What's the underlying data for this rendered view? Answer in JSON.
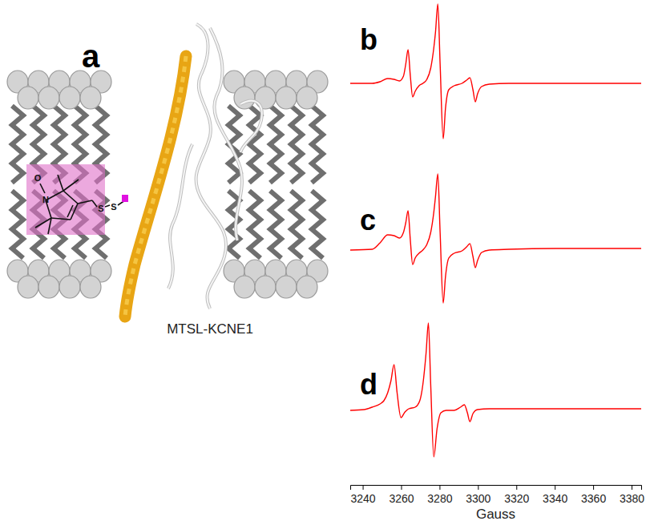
{
  "diagram": {
    "label": "a",
    "caption": "MTSL-KCNE1",
    "molecule": {
      "atoms": [
        "O",
        "N",
        "S",
        "S"
      ]
    }
  },
  "chart_data": [
    {
      "type": "line",
      "title": "b",
      "color": "#ff0000",
      "tick_labels": false,
      "xlim": [
        3233.5,
        3385
      ],
      "ylim": [
        -7.5,
        10.5
      ],
      "x": [
        3233.5,
        3244.9,
        3249.0,
        3253.0,
        3256.3,
        3259.1,
        3261.2,
        3262.4,
        3263.6,
        3264.8,
        3266.0,
        3267.3,
        3269.3,
        3271.3,
        3273.4,
        3275.4,
        3277.0,
        3277.9,
        3279.1,
        3280.3,
        3281.9,
        3283.1,
        3284.8,
        3287.6,
        3291.7,
        3294.1,
        3295.8,
        3297.4,
        3298.6,
        3299.8,
        3301.9,
        3305.9,
        3316.1,
        3340.5,
        3364.9,
        3385.3
      ],
      "values": [
        0.1,
        0.1,
        0.3,
        0.7,
        0.6,
        0.4,
        1.0,
        2.5,
        4.3,
        1.0,
        -1.6,
        -0.9,
        -0.2,
        0.1,
        0.6,
        2.0,
        4.5,
        6.5,
        10.0,
        2.5,
        -6.8,
        -3.0,
        -0.7,
        -0.2,
        0.1,
        0.5,
        0.8,
        -0.7,
        -2.2,
        -1.2,
        -0.3,
        0.0,
        0.1,
        0.1,
        0.1,
        0.1
      ]
    },
    {
      "type": "line",
      "title": "c",
      "color": "#ff0000",
      "tick_labels": false,
      "xlim": [
        3233.5,
        3385
      ],
      "ylim": [
        -8.3,
        10.7
      ],
      "x": [
        3233.5,
        3244.9,
        3249.0,
        3253.0,
        3256.3,
        3259.1,
        3261.2,
        3262.4,
        3263.6,
        3264.8,
        3266.0,
        3267.3,
        3269.3,
        3271.3,
        3273.4,
        3275.4,
        3277.0,
        3277.9,
        3279.1,
        3280.3,
        3281.9,
        3283.1,
        3284.8,
        3287.6,
        3291.7,
        3294.1,
        3295.8,
        3297.4,
        3298.6,
        3299.8,
        3301.9,
        3305.9,
        3316.1,
        3340.5,
        3364.9,
        3385.3
      ],
      "values": [
        0.0,
        0.1,
        0.9,
        1.9,
        1.8,
        1.5,
        2.2,
        3.4,
        4.9,
        1.2,
        -1.8,
        -1.0,
        -0.4,
        0.0,
        0.7,
        2.2,
        4.7,
        6.7,
        9.5,
        2.2,
        -6.6,
        -3.3,
        -1.0,
        -0.4,
        -0.1,
        0.4,
        0.8,
        -0.8,
        -2.2,
        -1.3,
        -0.3,
        0.0,
        0.1,
        0.2,
        0.2,
        0.2
      ]
    },
    {
      "type": "line",
      "title": "d",
      "color": "#ff0000",
      "tick_labels": "x",
      "xlabel": "Gauss",
      "xlim": [
        3233.5,
        3385
      ],
      "ylim": [
        -7.8,
        11.4
      ],
      "xticks": [
        3240,
        3260,
        3280,
        3300,
        3320,
        3340,
        3360,
        3380
      ],
      "x": [
        3233.5,
        3240.8,
        3244.9,
        3249.0,
        3251.0,
        3253.0,
        3254.7,
        3256.3,
        3257.9,
        3259.9,
        3262.0,
        3264.0,
        3267.3,
        3269.7,
        3271.3,
        3273.0,
        3274.2,
        3275.4,
        3277.0,
        3278.7,
        3280.7,
        3283.5,
        3287.6,
        3290.9,
        3292.9,
        3294.5,
        3295.8,
        3297.4,
        3299.8,
        3305.9,
        3316.1,
        3340.5,
        3364.9,
        3385.3
      ],
      "values": [
        0.0,
        0.1,
        0.4,
        0.8,
        1.2,
        2.2,
        3.7,
        5.7,
        2.2,
        -0.9,
        -0.2,
        0.2,
        0.4,
        1.2,
        3.2,
        7.2,
        10.9,
        3.2,
        -5.8,
        -2.3,
        -0.3,
        0.0,
        0.0,
        0.4,
        0.7,
        -0.3,
        -1.4,
        -0.4,
        0.1,
        0.2,
        0.2,
        0.2,
        0.2,
        0.2
      ]
    }
  ]
}
